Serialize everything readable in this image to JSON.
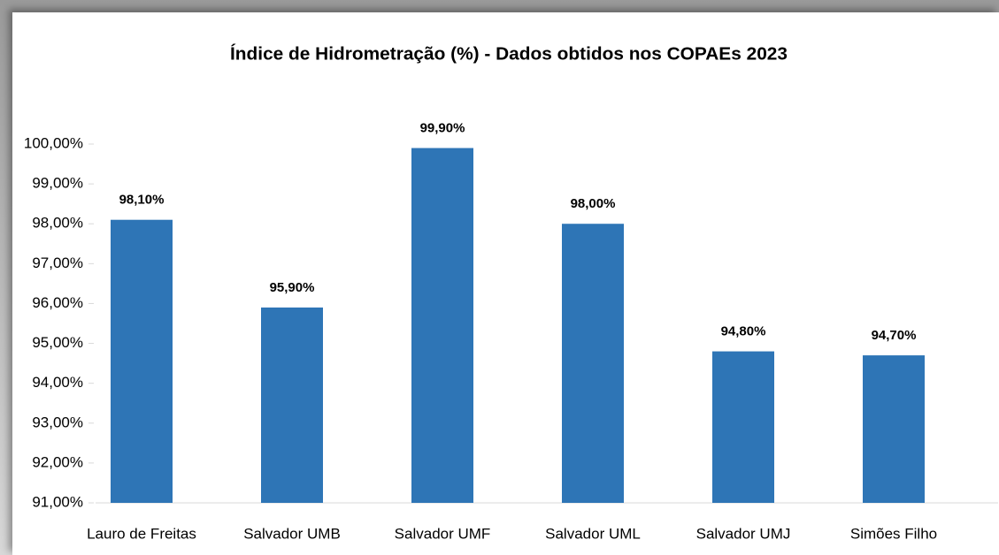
{
  "chart_data": {
    "type": "bar",
    "title": "Índice de Hidrometração (%) - Dados  obtidos nos COPAEs 2023",
    "categories": [
      "Lauro de Freitas",
      "Salvador UMB",
      "Salvador UMF",
      "Salvador UML",
      "Salvador UMJ",
      "Simões Filho"
    ],
    "values": [
      98.1,
      95.9,
      99.9,
      98.0,
      94.8,
      94.7
    ],
    "value_labels": [
      "98,10%",
      "95,90%",
      "99,90%",
      "98,00%",
      "94,80%",
      "94,70%"
    ],
    "color": "#2e75b6",
    "ylim": [
      91,
      100
    ],
    "yticks": [
      {
        "value": 91,
        "label": "91,00%"
      },
      {
        "value": 92,
        "label": "92,00%"
      },
      {
        "value": 93,
        "label": "93,00%"
      },
      {
        "value": 94,
        "label": "94,00%"
      },
      {
        "value": 95,
        "label": "95,00%"
      },
      {
        "value": 96,
        "label": "96,00%"
      },
      {
        "value": 97,
        "label": "97,00%"
      },
      {
        "value": 98,
        "label": "98,00%"
      },
      {
        "value": 99,
        "label": "99,00%"
      },
      {
        "value": 100,
        "label": "100,00%"
      }
    ],
    "grid": false
  }
}
